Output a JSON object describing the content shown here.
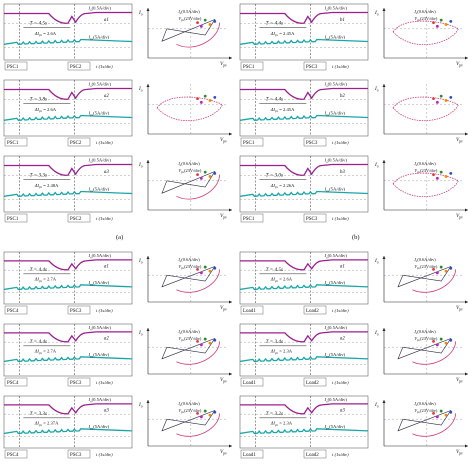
{
  "colors": {
    "magenta": "#9b1f8f",
    "cyan": "#1aa6a8",
    "pink_curve": "#d23a78",
    "dark_curve": "#222244",
    "frame": "#666666",
    "dash": "#888888"
  },
  "figure": {
    "quadrants": [
      {
        "label": "(a)",
        "rows": [
          {
            "sub": "a1",
            "i_div": "I_o(0.5A/div)",
            "p_div": "I_pv(5A/div)",
            "period": "T = 4.5s",
            "delta": "ΔI_pv = 2.6A",
            "left_tag": "PSC1",
            "right_tag": "PSC2",
            "time_div": "t (1s/div)",
            "xy": {
              "legend1": "I_o(0.5A/div)",
              "legend2": "V_pv(23V/div)",
              "xaxis": "V_pv",
              "yaxis": "I_o"
            }
          },
          {
            "sub": "a2",
            "i_div": "I_o(0.5A/div)",
            "p_div": "I_pv(5A/div)",
            "period": "T = 3.8s",
            "delta": "ΔI_pv = 2.6A",
            "left_tag": "PSC1",
            "right_tag": "PSC2",
            "time_div": "t (1s/div)",
            "xy": {
              "legend1": "",
              "legend2": "",
              "xaxis": "V_pv",
              "yaxis": "I_o"
            }
          },
          {
            "sub": "a3",
            "i_div": "I_o(0.5A/div)",
            "p_div": "I_pv(5A/div)",
            "period": "T = 3.3s",
            "delta": "ΔI_pv = 2.48A",
            "left_tag": "PSC1",
            "right_tag": "PSC2",
            "time_div": "t (1s/div)",
            "xy": {
              "legend1": "I_o(0.6A/div)",
              "legend2": "V_pv(23V/div)",
              "xaxis": "V_pv",
              "yaxis": "I_o"
            }
          }
        ]
      },
      {
        "label": "(b)",
        "rows": [
          {
            "sub": "b1",
            "i_div": "I_o(0.5A/div)",
            "p_div": "I_pv(5A/div)",
            "period": "T = 4.4s",
            "delta": "ΔI_pv = 2.45A",
            "left_tag": "PSC1",
            "right_tag": "PSC3",
            "time_div": "t (1s/div)",
            "xy": {
              "legend1": "I_o(0.6A/div)",
              "legend2": "V_pv(23V/div)",
              "xaxis": "V_pv",
              "yaxis": "I_o"
            }
          },
          {
            "sub": "b2",
            "i_div": "I_o(0.5A/div)",
            "p_div": "I_pv(5A/div)",
            "period": "T = 4.4s",
            "delta": "ΔI_pv = 2.45A",
            "left_tag": "PSC1",
            "right_tag": "PSC3",
            "time_div": "t (1s/div)",
            "xy": {
              "legend1": "",
              "legend2": "",
              "xaxis": "V_pv",
              "yaxis": "I_o"
            }
          },
          {
            "sub": "b3",
            "i_div": "I_o(0.5A/div)",
            "p_div": "I_pv(5A/div)",
            "period": "T = 3.0s",
            "delta": "ΔI_pv = 2.26A",
            "left_tag": "PSC1",
            "right_tag": "PSC3",
            "time_div": "t (1s/div)",
            "xy": {
              "legend1": "I_o(0.6A/div)",
              "legend2": "V_pv(23V/div)",
              "xaxis": "V_pv",
              "yaxis": "I_o"
            }
          }
        ]
      },
      {
        "label": "",
        "rows": [
          {
            "sub": "a1",
            "i_div": "I_o(0.5A/div)",
            "p_div": "I_pv(5A/div)",
            "period": "T = 4.4s",
            "delta": "ΔI_pv = 2.7A",
            "left_tag": "PSC4",
            "right_tag": "PSC3",
            "time_div": "t (1s/div)",
            "xy": {
              "legend1": "I_o(0.6A/div)",
              "legend2": "V_pv(23V/div)",
              "xaxis": "V_pv",
              "yaxis": "I_o"
            }
          },
          {
            "sub": "a2",
            "i_div": "I_o(0.5A/div)",
            "p_div": "I_pv(5A/div)",
            "period": "T = 4.4s",
            "delta": "ΔI_pv = 2.7A",
            "left_tag": "PSC4",
            "right_tag": "PSC3",
            "time_div": "t (1s/div)",
            "xy": {
              "legend1": "I_o(0.6A/div)",
              "legend2": "V_pv(23V/div)",
              "xaxis": "V_pv",
              "yaxis": "I_o"
            }
          },
          {
            "sub": "a3",
            "i_div": "I_o(0.5A/div)",
            "p_div": "I_pv(5A/div)",
            "period": "T = 3.3s",
            "delta": "ΔI_pv = 2.37A",
            "left_tag": "PSC4",
            "right_tag": "PSC3",
            "time_div": "t (1s/div)",
            "xy": {
              "legend1": "I_o(0.6A/div)",
              "legend2": "V_pv(23V/div)",
              "xaxis": "V_pv",
              "yaxis": "I_o"
            }
          }
        ]
      },
      {
        "label": "",
        "rows": [
          {
            "sub": "a1",
            "i_div": "I_o(0.5A/div)",
            "p_div": "I_pv(5A/div)",
            "period": "T = 4.5s",
            "delta": "ΔI_pv = 2.6A",
            "left_tag": "Load1",
            "right_tag": "Load2",
            "time_div": "t (1s/div)",
            "xy": {
              "legend1": "I_o(0.6A/div)",
              "legend2": "V_pv(23V/div)",
              "xaxis": "V_pv",
              "yaxis": "I_o"
            }
          },
          {
            "sub": "a2",
            "i_div": "I_o(0.5A/div)",
            "p_div": "I_pv(5A/div)",
            "period": "T = 3.4s",
            "delta": "ΔI_pv = 2.3A",
            "left_tag": "Load1",
            "right_tag": "Load2",
            "time_div": "t (1s/div)",
            "xy": {
              "legend1": "I_o(0.6A/div)",
              "legend2": "V_pv(23V/div)",
              "xaxis": "V_pv",
              "yaxis": "I_o"
            }
          },
          {
            "sub": "a3",
            "i_div": "I_o(0.5A/div)",
            "p_div": "I_pv(5A/div)",
            "period": "T = 3.2s",
            "delta": "ΔI_pv = 2.3A",
            "left_tag": "Load1",
            "right_tag": "Load2",
            "time_div": "t (1s/div)",
            "xy": {
              "legend1": "I_o(0.6A/div)",
              "legend2": "V_pv(23V/div)",
              "xaxis": "V_pv",
              "yaxis": "I_o"
            }
          }
        ]
      }
    ]
  }
}
